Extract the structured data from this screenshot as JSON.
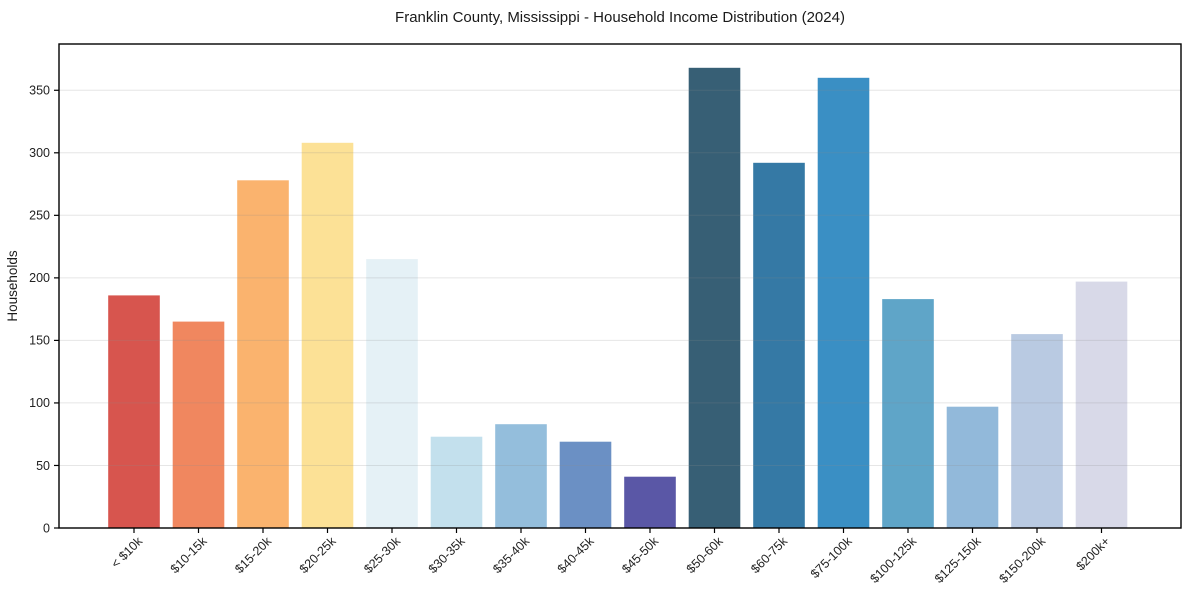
{
  "chart_data": {
    "type": "bar",
    "title": "Franklin County, Mississippi - Household Income Distribution (2024)",
    "xlabel": "",
    "ylabel": "Households",
    "categories": [
      "< $10k",
      "$10-15k",
      "$15-20k",
      "$20-25k",
      "$25-30k",
      "$30-35k",
      "$35-40k",
      "$40-45k",
      "$45-50k",
      "$50-60k",
      "$60-75k",
      "$75-100k",
      "$100-125k",
      "$125-150k",
      "$150-200k",
      "$200k+"
    ],
    "values": [
      186,
      165,
      278,
      308,
      215,
      73,
      83,
      69,
      41,
      368,
      292,
      360,
      183,
      97,
      155,
      197
    ],
    "bar_colors": [
      "#D7554E",
      "#F0875F",
      "#FAB36E",
      "#FCE196",
      "#E5F1F6",
      "#C3E0ED",
      "#94BEDC",
      "#6B90C4",
      "#5A57A6",
      "#375F75",
      "#3579A5",
      "#3A8FC4",
      "#5FA5C8",
      "#92B9DA",
      "#B9CAE2",
      "#D8D9E8"
    ],
    "y_ticks": [
      0,
      50,
      100,
      150,
      200,
      250,
      300,
      350
    ],
    "ylim": [
      0,
      387
    ],
    "x_tick_rotation": 45,
    "grid": "horizontal-light",
    "legend": "none",
    "plot_background": "#ffffff",
    "spine_color": "#000000"
  }
}
